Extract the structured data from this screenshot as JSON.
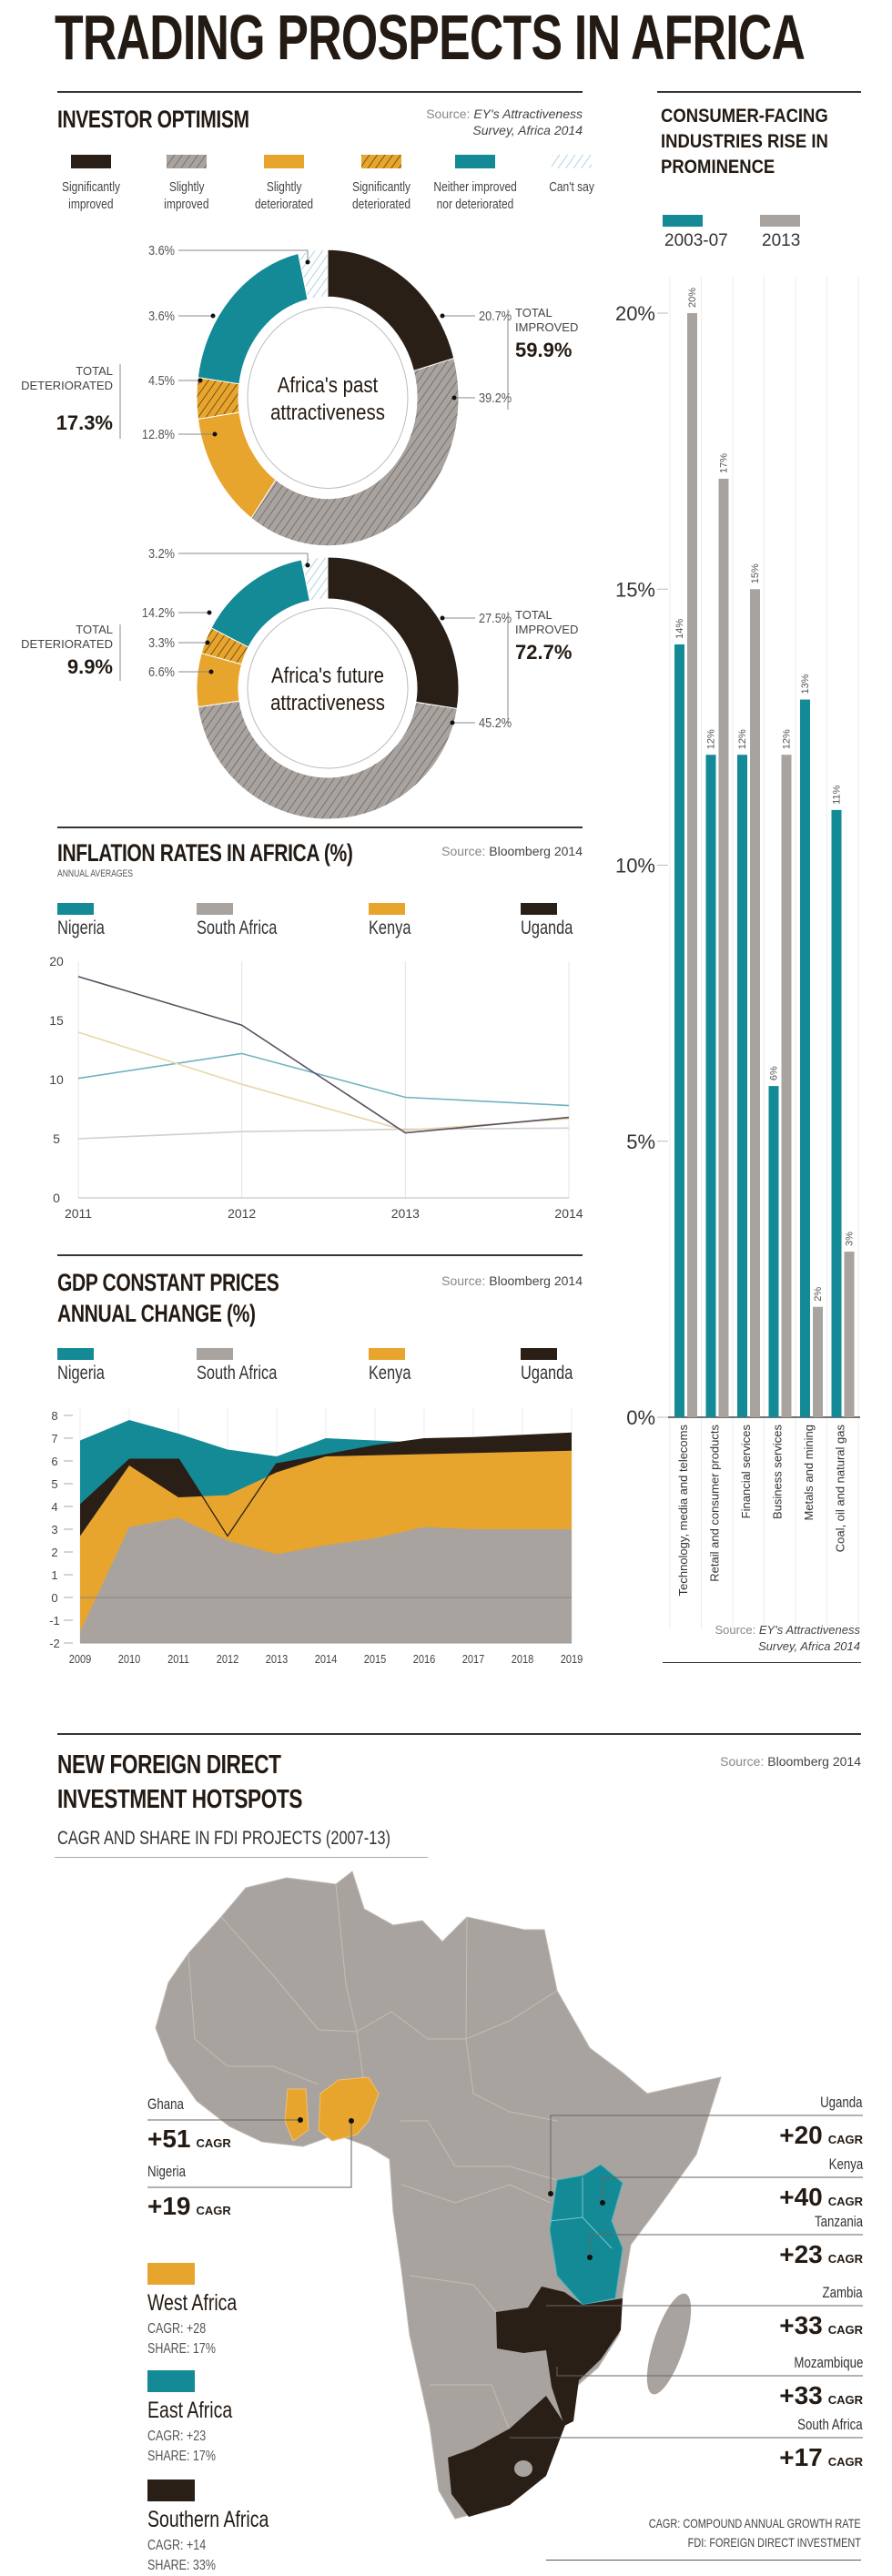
{
  "title": "TRADING PROSPECTS IN AFRICA",
  "colors": {
    "dark": "#2a1f17",
    "teal": "#138a95",
    "orange": "#e8a52d",
    "gray": "#a8a39e",
    "light_hatch": "#9ccfe0"
  },
  "investor": {
    "title": "INVESTOR OPTIMISM",
    "source_prefix": "Source: ",
    "source_line1": "EY's Attractiveness",
    "source_line2": "Survey, Africa 2014",
    "legend": [
      {
        "label1": "Significantly",
        "label2": "improved",
        "color": "#2a1f17",
        "hatched": false
      },
      {
        "label1": "Slightly",
        "label2": "improved",
        "color": "#a8a39e",
        "hatched": true
      },
      {
        "label1": "Slightly",
        "label2": "deteriorated",
        "color": "#e8a52d",
        "hatched": false
      },
      {
        "label1": "Significantly",
        "label2": "deteriorated",
        "color": "#e8a52d",
        "hatched": true
      },
      {
        "label1": "Neither improved",
        "label2": "nor deteriorated",
        "color": "#138a95",
        "hatched": false
      },
      {
        "label1": "Can't say",
        "label2": "",
        "color": "#ffffff",
        "hatched": true
      }
    ]
  },
  "chart_data": [
    {
      "type": "pie",
      "title": "Africa's past attractiveness",
      "categories": [
        "Significantly improved",
        "Slightly improved",
        "Slightly deteriorated",
        "Significantly deteriorated",
        "Neither improved nor deteriorated",
        "Can't say"
      ],
      "values": [
        20.7,
        39.2,
        12.8,
        4.5,
        3.6,
        3.6
      ],
      "labels": [
        "20.7%",
        "39.2%",
        "12.8%",
        "4.5%",
        "3.6%",
        "3.6%"
      ],
      "total_improved_label": "TOTAL IMPROVED",
      "total_improved": "59.9%",
      "total_deteriorated_label": "TOTAL DETERIORATED",
      "total_deteriorated": "17.3%"
    },
    {
      "type": "pie",
      "title": "Africa's future attractiveness",
      "categories": [
        "Significantly improved",
        "Slightly improved",
        "Slightly deteriorated",
        "Significantly deteriorated",
        "Neither improved nor deteriorated",
        "Can't say"
      ],
      "values": [
        27.5,
        45.2,
        6.6,
        3.3,
        14.2,
        3.2
      ],
      "labels": [
        "27.5%",
        "45.2%",
        "6.6%",
        "3.3%",
        "14.2%",
        "3.2%"
      ],
      "total_improved_label": "TOTAL IMPROVED",
      "total_improved": "72.7%",
      "total_deteriorated_label": "TOTAL DETERIORATED",
      "total_deteriorated": "9.9%"
    },
    {
      "type": "line",
      "title": "INFLATION RATES IN AFRICA (%)",
      "subtitle": "ANNUAL AVERAGES",
      "source_prefix": "Source: ",
      "source": "Bloomberg 2014",
      "x": [
        "2011",
        "2012",
        "2013",
        "2014"
      ],
      "yticks": [
        "0",
        "5",
        "10",
        "15",
        "20"
      ],
      "ylim": [
        0,
        20
      ],
      "series": [
        {
          "name": "Nigeria",
          "color": "#138a95",
          "values": [
            10.1,
            12.2,
            8.5,
            7.8
          ]
        },
        {
          "name": "South Africa",
          "color": "#a8a39e",
          "values": [
            5.0,
            5.6,
            5.8,
            5.9
          ]
        },
        {
          "name": "Kenya",
          "color": "#e8a52d",
          "values": [
            14.0,
            9.6,
            5.7,
            6.7
          ]
        },
        {
          "name": "Uganda",
          "color": "#2a1f17",
          "values": [
            18.7,
            14.6,
            5.5,
            6.8
          ]
        }
      ]
    },
    {
      "type": "area",
      "title_line1": "GDP CONSTANT PRICES",
      "title_line2": "ANNUAL CHANGE (%)",
      "source_prefix": "Source: ",
      "source": "Bloomberg 2014",
      "x": [
        "2009",
        "2010",
        "2011",
        "2012",
        "2013",
        "2014",
        "2015",
        "2016",
        "2017",
        "2018",
        "2019"
      ],
      "yticks": [
        "-2",
        "-1",
        "0",
        "1",
        "2",
        "3",
        "4",
        "5",
        "6",
        "7",
        "8"
      ],
      "ylim": [
        -2,
        8
      ],
      "series": [
        {
          "name": "Nigeria",
          "color": "#138a95",
          "values": [
            6.9,
            7.8,
            7.2,
            6.5,
            6.2,
            7.0,
            6.9,
            6.8,
            6.8,
            6.5,
            6.5
          ]
        },
        {
          "name": "South Africa",
          "color": "#a8a39e",
          "values": [
            -1.5,
            3.1,
            3.5,
            2.5,
            1.9,
            2.3,
            2.6,
            3.1,
            3.0,
            3.0,
            3.0
          ]
        },
        {
          "name": "Kenya",
          "color": "#e8a52d",
          "values": [
            2.7,
            5.8,
            4.4,
            4.5,
            5.5,
            6.2,
            6.25,
            6.3,
            6.35,
            6.4,
            6.45
          ]
        },
        {
          "name": "Uganda",
          "color": "#2a1f17",
          "values": [
            4.1,
            6.1,
            6.1,
            2.7,
            5.9,
            6.3,
            6.7,
            7.0,
            7.05,
            7.15,
            7.25
          ]
        }
      ]
    },
    {
      "type": "bar",
      "title": "CONSUMER-FACING INDUSTRIES RISE IN PROMINENCE",
      "categories": [
        "Technology, media and telecoms",
        "Retail and consumer products",
        "Financial services",
        "Business services",
        "Metals and mining",
        "Coal, oil and natural gas"
      ],
      "yticks": [
        "0%",
        "5%",
        "10%",
        "15%",
        "20%"
      ],
      "ylim": [
        0,
        20
      ],
      "series": [
        {
          "name": "2003-07",
          "color": "#138a95",
          "values": [
            14,
            12,
            12,
            6,
            13,
            11
          ]
        },
        {
          "name": "2013",
          "color": "#a8a39e",
          "values": [
            20,
            17,
            15,
            12,
            2,
            3
          ]
        }
      ],
      "source_prefix": "Source: ",
      "source_line1": "EY's Attractiveness",
      "source_line2": "Survey, Africa 2014"
    }
  ],
  "fdi": {
    "title_line1": "NEW FOREIGN DIRECT",
    "title_line2": "INVESTMENT HOTSPOTS",
    "subtitle": "CAGR AND SHARE IN FDI PROJECTS (2007-13)",
    "source_prefix": "Source: ",
    "source": "Bloomberg 2014",
    "unit": "CAGR",
    "left_countries": [
      {
        "name": "Ghana",
        "value": "+51"
      },
      {
        "name": "Nigeria",
        "value": "+19"
      }
    ],
    "right_countries": [
      {
        "name": "Uganda",
        "value": "+20"
      },
      {
        "name": "Kenya",
        "value": "+40"
      },
      {
        "name": "Tanzania",
        "value": "+23"
      },
      {
        "name": "Zambia",
        "value": "+33"
      },
      {
        "name": "Mozambique",
        "value": "+33"
      },
      {
        "name": "South Africa",
        "value": "+17"
      }
    ],
    "regions": [
      {
        "name": "West Africa",
        "cagr": "CAGR: +28",
        "share": "SHARE: 17%",
        "color": "#e8a52d"
      },
      {
        "name": "East Africa",
        "cagr": "CAGR: +23",
        "share": "SHARE: 17%",
        "color": "#138a95"
      },
      {
        "name": "Southern Africa",
        "cagr": "CAGR: +14",
        "share": "SHARE: 33%",
        "color": "#2a1f17"
      }
    ],
    "footnote1": "CAGR: COMPOUND ANNUAL GROWTH RATE",
    "footnote2": "FDI: FOREIGN DIRECT INVESTMENT"
  }
}
